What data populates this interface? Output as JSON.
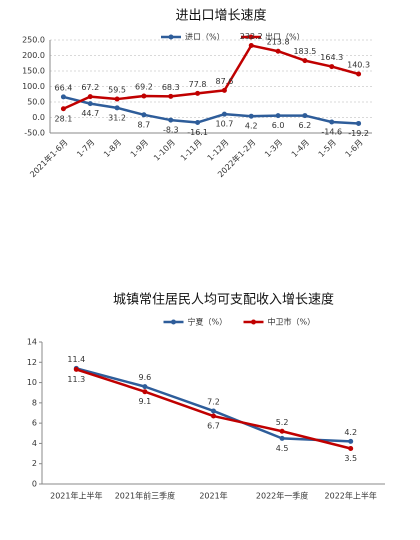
{
  "chart_data": [
    {
      "type": "line",
      "title": "进出口增长速度",
      "categories": [
        "2021年1-6月",
        "1-7月",
        "1-8月",
        "1-9月",
        "1-10月",
        "1-11月",
        "1-12月",
        "2022年1-2月",
        "1-3月",
        "1-4月",
        "1-5月",
        "1-6月"
      ],
      "series": [
        {
          "name": "进口（%）",
          "color": "#2e5d9a",
          "values": [
            66.4,
            44.7,
            31.2,
            8.7,
            -8.3,
            -16.1,
            10.7,
            4.2,
            6.0,
            6.2,
            -14.6,
            -19.2
          ],
          "value_labels": [
            "66.4",
            "44.7",
            "31.2",
            "8.7",
            "-8.3",
            "-16.1",
            "10.7",
            "4.2",
            "6.0",
            "6.2",
            "-14.6",
            "-19.2"
          ]
        },
        {
          "name": "出口（%）",
          "color": "#c00000",
          "values": [
            28.1,
            67.2,
            59.5,
            69.2,
            68.3,
            77.8,
            87.6,
            232.2,
            213.8,
            183.5,
            164.3,
            140.3
          ]
        }
      ],
      "ylim": [
        -50,
        250
      ],
      "yticks": [
        {
          "value": -50,
          "label": "-50.0"
        },
        {
          "value": 0,
          "label": "0.0"
        },
        {
          "value": 50,
          "label": "50.0"
        },
        {
          "value": 100,
          "label": "100.0"
        },
        {
          "value": 150,
          "label": "150.0"
        },
        {
          "value": 200,
          "label": "200.0"
        },
        {
          "value": 250,
          "label": "250.0"
        }
      ],
      "grid": true
    },
    {
      "type": "line",
      "title": "城镇常住居民人均可支配收入增长速度",
      "categories": [
        "2021年上半年",
        "2021年前三季度",
        "2021年",
        "2022年一季度",
        "2022年上半年"
      ],
      "series": [
        {
          "name": "宁夏（%）",
          "color": "#2e5d9a",
          "values": [
            11.4,
            9.6,
            7.2,
            4.5,
            4.2
          ]
        },
        {
          "name": "中卫市（%）",
          "color": "#c00000",
          "values": [
            11.3,
            9.1,
            6.7,
            5.2,
            3.5
          ]
        }
      ],
      "ylim": [
        0,
        14
      ],
      "yticks": [
        0,
        2,
        4,
        6,
        8,
        10,
        12,
        14
      ],
      "grid": false
    }
  ]
}
